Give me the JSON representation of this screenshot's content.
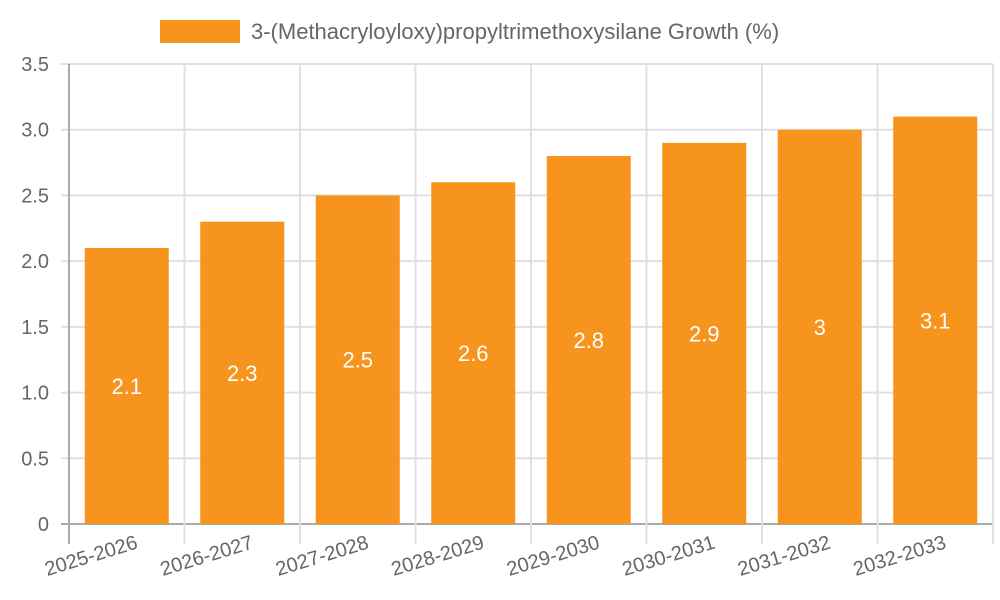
{
  "chart_data": {
    "type": "bar",
    "title": "",
    "xlabel": "",
    "ylabel": "",
    "legend": [
      {
        "label": "3-(Methacryloyloxy)propyltrimethoxysilane Growth (%)",
        "color": "#f7941e"
      }
    ],
    "legend_position": "top",
    "categories": [
      "2025-2026",
      "2026-2027",
      "2027-2028",
      "2028-2029",
      "2029-2030",
      "2030-2031",
      "2031-2032",
      "2032-2033"
    ],
    "series": [
      {
        "name": "3-(Methacryloyloxy)propyltrimethoxysilane Growth (%)",
        "values": [
          2.1,
          2.3,
          2.5,
          2.6,
          2.8,
          2.9,
          3,
          3.1
        ],
        "color": "#f7941e"
      }
    ],
    "data_labels": [
      "2.1",
      "2.3",
      "2.5",
      "2.6",
      "2.8",
      "2.9",
      "3",
      "3.1"
    ],
    "ylim": [
      0,
      3.5
    ],
    "yticks": [
      "0",
      "0.5",
      "1.0",
      "1.5",
      "2.0",
      "2.5",
      "3.0",
      "3.5"
    ],
    "grid": true
  }
}
